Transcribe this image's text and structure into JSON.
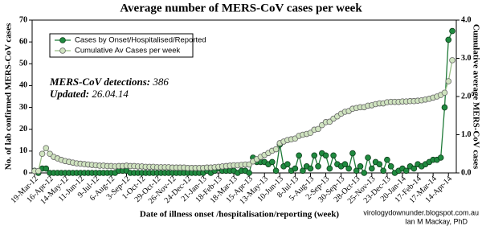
{
  "chart_data": {
    "type": "line",
    "title": "Average number of MERS-CoV cases per week",
    "y_label": "No. of lab confirmed MERS-CoV cases",
    "y2_label": "Cumulative average MERS-CoV cases",
    "x_label": "Date of illness onset /hospitalisation/reporting (week)",
    "annotations": {
      "detections_label": "MERS-CoV detections:",
      "detections_value": "386",
      "updated_label": "Updated:",
      "updated_value": "26.04.14"
    },
    "credits": [
      "virologydownunder.blogspot.com.au",
      "Ian M Mackay, PhD"
    ],
    "categories": [
      "19-Mar-12",
      null,
      null,
      null,
      "16-Apr-12",
      null,
      null,
      null,
      "14-May-12",
      null,
      null,
      null,
      "11-Jun-12",
      null,
      null,
      null,
      "9-Jul-12",
      null,
      null,
      null,
      "6-Aug-12",
      null,
      null,
      null,
      "3-Sep-12",
      null,
      null,
      null,
      "1-Oct-12",
      null,
      null,
      null,
      "29-Oct-12",
      null,
      null,
      null,
      "26-Nov-12",
      null,
      null,
      null,
      "24-Dec-12",
      null,
      null,
      null,
      "21-Jan-13",
      null,
      null,
      null,
      "18-Feb-13",
      null,
      null,
      null,
      "18-Mar-13",
      null,
      null,
      null,
      "15-Apr-13",
      null,
      null,
      null,
      "13-May-13",
      null,
      null,
      null,
      "10-Jun-13",
      null,
      null,
      null,
      "8-Jul-13",
      null,
      null,
      null,
      "5-Aug-13",
      null,
      null,
      null,
      "2-Sep-13",
      null,
      null,
      null,
      "30-Sep-13",
      null,
      null,
      null,
      "28-Oct-13",
      null,
      null,
      null,
      "25-Nov-13",
      null,
      null,
      null,
      "23-Dec-13",
      null,
      null,
      null,
      "20-Jan-14",
      null,
      null,
      null,
      "17-Feb-14",
      null,
      null,
      null,
      "17-Mar-14",
      null,
      null,
      null,
      "14-Apr-14",
      null
    ],
    "series": [
      {
        "name": "Cases by Onset/Hospitalised/Reported",
        "color": "#1f8a3f",
        "axis": "y",
        "values": [
          1,
          0,
          2,
          2,
          0,
          0,
          0,
          0,
          0,
          0,
          0,
          0,
          0,
          0,
          0,
          0,
          0,
          0,
          0,
          0,
          0,
          0,
          1,
          1,
          1,
          0,
          0,
          0,
          0,
          0,
          0,
          0,
          0,
          0,
          0,
          0,
          0,
          0,
          0,
          0,
          0,
          0,
          0,
          0,
          0,
          1,
          0,
          1,
          2,
          1,
          1,
          1,
          1,
          0,
          1,
          1,
          0,
          7,
          5,
          5,
          5,
          4,
          5,
          1,
          13,
          3,
          4,
          1,
          2,
          8,
          1,
          3,
          2,
          8,
          3,
          9,
          8,
          2,
          8,
          4,
          3,
          4,
          2,
          9,
          1,
          3,
          0,
          7,
          2,
          5,
          4,
          1,
          6,
          3,
          0,
          1,
          2,
          1,
          3,
          2,
          4,
          3,
          4,
          5,
          6,
          6,
          7,
          30,
          61,
          65
        ]
      },
      {
        "name": "Cumulative Av Cases per week",
        "color": "#cfe3bf",
        "axis": "y2",
        "values": [
          0.05,
          0.05,
          0.5,
          0.65,
          0.5,
          0.42,
          0.38,
          0.34,
          0.31,
          0.29,
          0.27,
          0.25,
          0.24,
          0.23,
          0.22,
          0.21,
          0.2,
          0.19,
          0.19,
          0.18,
          0.18,
          0.17,
          0.18,
          0.18,
          0.19,
          0.18,
          0.18,
          0.17,
          0.17,
          0.16,
          0.16,
          0.16,
          0.15,
          0.15,
          0.15,
          0.15,
          0.14,
          0.14,
          0.14,
          0.14,
          0.13,
          0.13,
          0.13,
          0.13,
          0.13,
          0.14,
          0.14,
          0.15,
          0.16,
          0.17,
          0.18,
          0.19,
          0.2,
          0.2,
          0.21,
          0.22,
          0.22,
          0.3,
          0.36,
          0.42,
          0.47,
          0.52,
          0.58,
          0.62,
          0.78,
          0.82,
          0.86,
          0.88,
          0.9,
          0.97,
          1.0,
          1.02,
          1.05,
          1.13,
          1.15,
          1.25,
          1.33,
          1.34,
          1.42,
          1.48,
          1.55,
          1.6,
          1.62,
          1.68,
          1.7,
          1.72,
          1.72,
          1.76,
          1.77,
          1.8,
          1.82,
          1.82,
          1.85,
          1.86,
          1.86,
          1.86,
          1.87,
          1.87,
          1.88,
          1.88,
          1.89,
          1.9,
          1.92,
          1.94,
          1.97,
          2.0,
          2.04,
          2.1,
          2.4,
          2.95
        ]
      }
    ],
    "ylim": [
      0,
      70
    ],
    "yticks": [
      0,
      10,
      20,
      30,
      40,
      50,
      60,
      70
    ],
    "y2lim": [
      0,
      4
    ],
    "y2ticks": [
      {
        "value": 0,
        "label": "0.0"
      },
      {
        "value": 1,
        "label": "1.0"
      },
      {
        "value": 2,
        "label": "2.0"
      },
      {
        "value": 3,
        "label": "3.0"
      },
      {
        "value": 4,
        "label": "4.0"
      }
    ],
    "legend": "upper left"
  }
}
